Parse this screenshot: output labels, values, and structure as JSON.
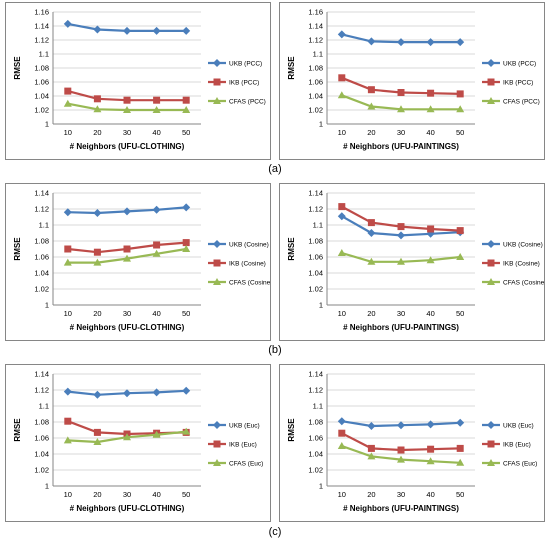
{
  "row_labels": [
    "(a)",
    "(b)",
    "(c)"
  ],
  "chart_data": [
    {
      "type": "line",
      "ylabel": "RMSE",
      "xlabel": "# Neighbors (UFU-CLOTHING)",
      "x": [
        10,
        20,
        30,
        40,
        50
      ],
      "ylim": [
        1,
        1.16
      ],
      "yticks": [
        "1",
        "1.02",
        "1.04",
        "1.06",
        "1.08",
        "1.1",
        "1.12",
        "1.14",
        "1.16"
      ],
      "grid": true,
      "legend": "right",
      "series": [
        {
          "name": "UKB (PCC)",
          "color": "#4a7ebb",
          "marker": "diamond",
          "values": [
            1.143,
            1.135,
            1.133,
            1.133,
            1.133
          ]
        },
        {
          "name": "IKB (PCC)",
          "color": "#be4b48",
          "marker": "square",
          "values": [
            1.047,
            1.036,
            1.034,
            1.034,
            1.034
          ]
        },
        {
          "name": "CFAS (PCC)",
          "color": "#98b954",
          "marker": "triangle",
          "values": [
            1.029,
            1.021,
            1.02,
            1.02,
            1.02
          ]
        }
      ]
    },
    {
      "type": "line",
      "ylabel": "RMSE",
      "xlabel": "# Neighbors (UFU-PAINTINGS)",
      "x": [
        10,
        20,
        30,
        40,
        50
      ],
      "ylim": [
        1,
        1.16
      ],
      "yticks": [
        "1",
        "1.02",
        "1.04",
        "1.06",
        "1.08",
        "1.1",
        "1.12",
        "1.14",
        "1.16"
      ],
      "grid": true,
      "legend": "right",
      "series": [
        {
          "name": "UKB (PCC)",
          "color": "#4a7ebb",
          "marker": "diamond",
          "values": [
            1.128,
            1.118,
            1.117,
            1.117,
            1.117
          ]
        },
        {
          "name": "IKB (PCC)",
          "color": "#be4b48",
          "marker": "square",
          "values": [
            1.066,
            1.049,
            1.045,
            1.044,
            1.043
          ]
        },
        {
          "name": "CFAS (PCC)",
          "color": "#98b954",
          "marker": "triangle",
          "values": [
            1.041,
            1.025,
            1.021,
            1.021,
            1.021
          ]
        }
      ]
    },
    {
      "type": "line",
      "ylabel": "RMSE",
      "xlabel": "# Neighbors (UFU-CLOTHING)",
      "x": [
        10,
        20,
        30,
        40,
        50
      ],
      "ylim": [
        1,
        1.14
      ],
      "yticks": [
        "1",
        "1.02",
        "1.04",
        "1.06",
        "1.08",
        "1.1",
        "1.12",
        "1.14"
      ],
      "grid": true,
      "legend": "right",
      "series": [
        {
          "name": "UKB (Cosine)",
          "color": "#4a7ebb",
          "marker": "diamond",
          "values": [
            1.116,
            1.115,
            1.117,
            1.119,
            1.122
          ]
        },
        {
          "name": "IKB (Cosine)",
          "color": "#be4b48",
          "marker": "square",
          "values": [
            1.07,
            1.066,
            1.07,
            1.075,
            1.078
          ]
        },
        {
          "name": "CFAS (Cosine)",
          "color": "#98b954",
          "marker": "triangle",
          "values": [
            1.053,
            1.053,
            1.058,
            1.064,
            1.07
          ]
        }
      ]
    },
    {
      "type": "line",
      "ylabel": "RMSE",
      "xlabel": "# Neighbors (UFU-PAINTINGS)",
      "x": [
        10,
        20,
        30,
        40,
        50
      ],
      "ylim": [
        1,
        1.14
      ],
      "yticks": [
        "1",
        "1.02",
        "1.04",
        "1.06",
        "1.08",
        "1.1",
        "1.12",
        "1.14"
      ],
      "grid": true,
      "legend": "right",
      "series": [
        {
          "name": "UKB (Cosine)",
          "color": "#4a7ebb",
          "marker": "diamond",
          "values": [
            1.111,
            1.09,
            1.087,
            1.089,
            1.091
          ]
        },
        {
          "name": "IKB (Cosine)",
          "color": "#be4b48",
          "marker": "square",
          "values": [
            1.123,
            1.103,
            1.098,
            1.095,
            1.093
          ]
        },
        {
          "name": "CFAS (Cosine)",
          "color": "#98b954",
          "marker": "triangle",
          "values": [
            1.065,
            1.054,
            1.054,
            1.056,
            1.06
          ]
        }
      ]
    },
    {
      "type": "line",
      "ylabel": "RMSE",
      "xlabel": "# Neighbors (UFU-CLOTHING)",
      "x": [
        10,
        20,
        30,
        40,
        50
      ],
      "ylim": [
        1,
        1.14
      ],
      "yticks": [
        "1",
        "1.02",
        "1.04",
        "1.06",
        "1.08",
        "1.1",
        "1.12",
        "1.14"
      ],
      "grid": true,
      "legend": "right",
      "series": [
        {
          "name": "UKB (Euc)",
          "color": "#4a7ebb",
          "marker": "diamond",
          "values": [
            1.118,
            1.114,
            1.116,
            1.117,
            1.119
          ]
        },
        {
          "name": "IKB (Euc)",
          "color": "#be4b48",
          "marker": "square",
          "values": [
            1.081,
            1.067,
            1.065,
            1.066,
            1.067
          ]
        },
        {
          "name": "CFAS (Euc)",
          "color": "#98b954",
          "marker": "triangle",
          "values": [
            1.057,
            1.055,
            1.061,
            1.064,
            1.068
          ]
        }
      ]
    },
    {
      "type": "line",
      "ylabel": "RMSE",
      "xlabel": "# Neighbors (UFU-PAINTINGS)",
      "x": [
        10,
        20,
        30,
        40,
        50
      ],
      "ylim": [
        1,
        1.14
      ],
      "yticks": [
        "1",
        "1.02",
        "1.04",
        "1.06",
        "1.08",
        "1.1",
        "1.12",
        "1.14"
      ],
      "grid": true,
      "legend": "right",
      "series": [
        {
          "name": "UKB (Euc)",
          "color": "#4a7ebb",
          "marker": "diamond",
          "values": [
            1.081,
            1.075,
            1.076,
            1.077,
            1.079
          ]
        },
        {
          "name": "IKB (Euc)",
          "color": "#be4b48",
          "marker": "square",
          "values": [
            1.066,
            1.047,
            1.045,
            1.046,
            1.047
          ]
        },
        {
          "name": "CFAS (Euc)",
          "color": "#98b954",
          "marker": "triangle",
          "values": [
            1.05,
            1.037,
            1.033,
            1.031,
            1.029
          ]
        }
      ]
    }
  ]
}
